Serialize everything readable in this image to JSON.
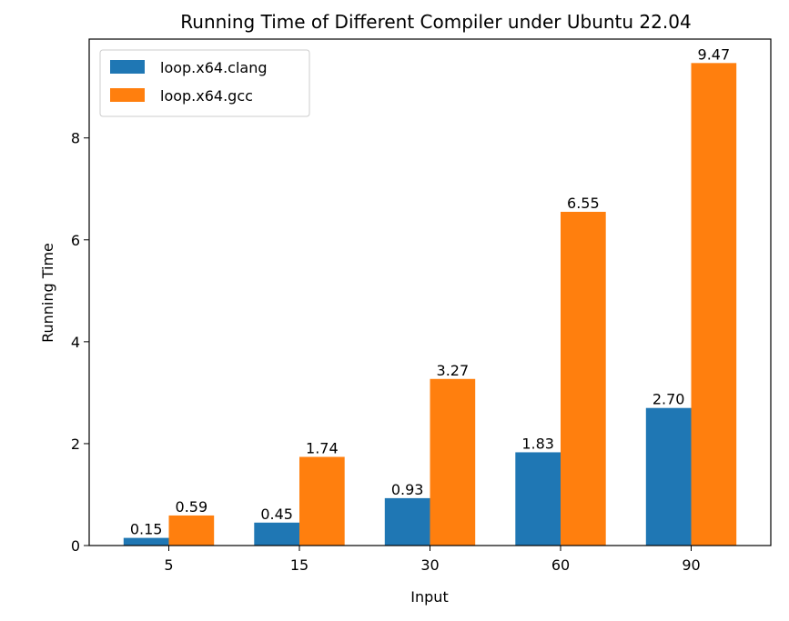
{
  "chart_data": {
    "type": "bar",
    "title": "Running Time of Different Compiler under Ubuntu 22.04",
    "xlabel": "Input",
    "ylabel": "Running Time",
    "categories": [
      "5",
      "15",
      "30",
      "60",
      "90"
    ],
    "ylim": [
      0,
      9.94
    ],
    "yticks": [
      0,
      2,
      4,
      6,
      8
    ],
    "grid": false,
    "legend_position": "top-left",
    "series": [
      {
        "name": "loop.x64.clang",
        "color": "#1f77b4",
        "values": [
          0.15,
          0.45,
          0.93,
          1.83,
          2.7
        ],
        "labels": [
          "0.15",
          "0.45",
          "0.93",
          "1.83",
          "2.70"
        ]
      },
      {
        "name": "loop.x64.gcc",
        "color": "#ff7f0e",
        "values": [
          0.59,
          1.74,
          3.27,
          6.55,
          9.47
        ],
        "labels": [
          "0.59",
          "1.74",
          "3.27",
          "6.55",
          "9.47"
        ]
      }
    ]
  }
}
